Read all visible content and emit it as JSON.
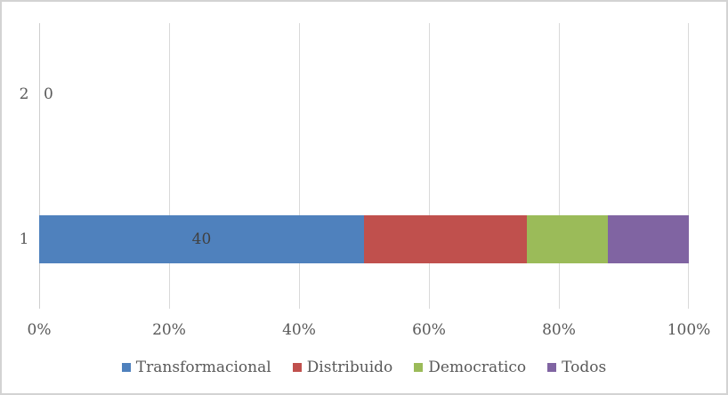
{
  "chart_data": {
    "type": "bar",
    "orientation": "horizontal",
    "stacking": "percent",
    "title": "",
    "xlabel": "",
    "ylabel": "",
    "grid": "vertical",
    "categories_top_to_bottom": [
      "2",
      "1"
    ],
    "series": [
      {
        "name": "Transformacional",
        "color": "#4F81BD",
        "values": {
          "1": 40,
          "2": 0
        }
      },
      {
        "name": "Distribuido",
        "color": "#C0504D",
        "values": {
          "1": 20,
          "2": 0
        }
      },
      {
        "name": "Democratico",
        "color": "#9BBB59",
        "values": {
          "1": 10,
          "2": 0
        }
      },
      {
        "name": "Todos",
        "color": "#8064A2",
        "values": {
          "1": 10,
          "2": 0
        }
      }
    ],
    "segment_percents_category_1": [
      50,
      25,
      12.5,
      12.5
    ],
    "x_axis": {
      "ticks": [
        "0%",
        "20%",
        "40%",
        "60%",
        "80%",
        "100%"
      ],
      "range_percent": [
        0,
        100
      ]
    },
    "data_labels": [
      {
        "category": "1",
        "series": "Transformacional",
        "text": "40"
      },
      {
        "category": "2",
        "series": null,
        "text": "0"
      }
    ],
    "legend": {
      "position": "bottom",
      "entries": [
        "Transformacional",
        "Distribuido",
        "Democratico",
        "Todos"
      ]
    },
    "colors": {
      "gridline": "#D9D9D9",
      "border": "#D3D3D3",
      "tick_text": "#595959",
      "data_label_text": "#404040"
    }
  }
}
